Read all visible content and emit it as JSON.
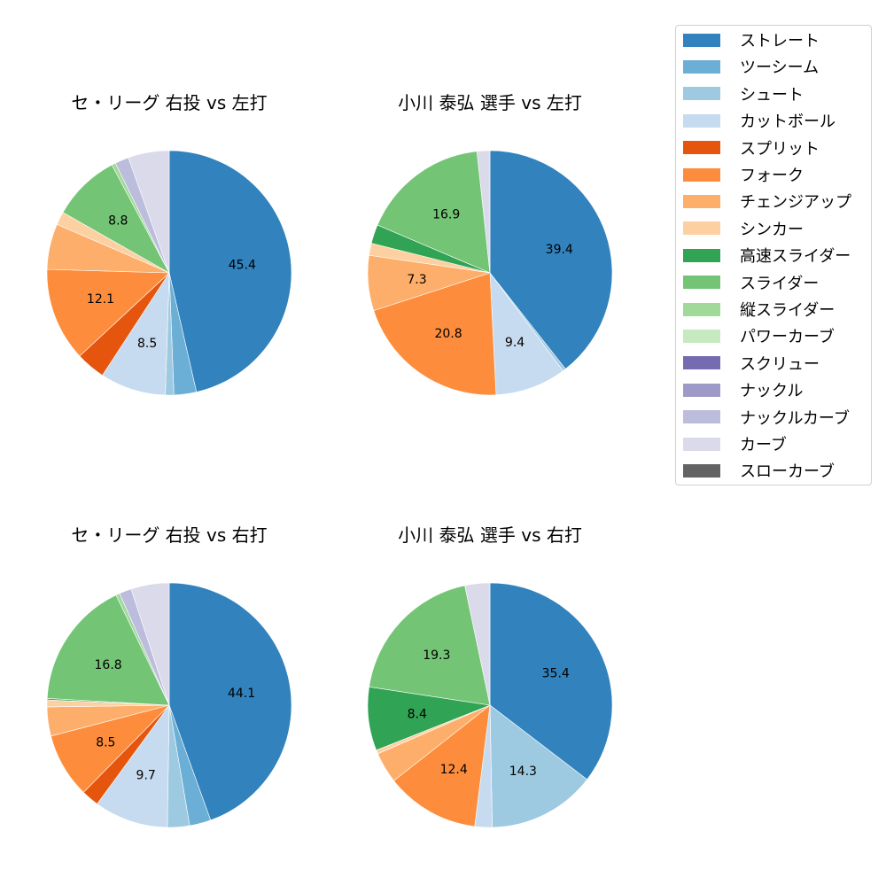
{
  "chart_data": [
    {
      "type": "pie",
      "title": "セ・リーグ 右投 vs 左打",
      "categories": [
        "ストレート",
        "ツーシーム",
        "シュート",
        "カットボール",
        "スプリット",
        "フォーク",
        "チェンジアップ",
        "シンカー",
        "高速スライダー",
        "スライダー",
        "縦スライダー",
        "パワーカーブ",
        "スクリュー",
        "ナックル",
        "ナックルカーブ",
        "カーブ",
        "スローカーブ"
      ],
      "values": [
        45.4,
        2.9,
        1.1,
        8.5,
        3.8,
        12.1,
        5.9,
        1.7,
        0.0,
        8.8,
        0.5,
        0.0,
        0.0,
        0.0,
        1.8,
        5.3,
        0.0
      ],
      "labels_shown": {
        "ストレート": "45.4",
        "カットボール": "8.5",
        "フォーク": "12.1",
        "スライダー": "8.8"
      }
    },
    {
      "type": "pie",
      "title": "小川 泰弘 選手 vs 左打",
      "categories": [
        "ストレート",
        "ツーシーム",
        "シュート",
        "カットボール",
        "スプリット",
        "フォーク",
        "チェンジアップ",
        "シンカー",
        "高速スライダー",
        "スライダー",
        "縦スライダー",
        "パワーカーブ",
        "スクリュー",
        "ナックル",
        "ナックルカーブ",
        "カーブ",
        "スローカーブ"
      ],
      "values": [
        39.4,
        0.0,
        0.4,
        9.4,
        0.0,
        20.8,
        7.3,
        1.6,
        2.5,
        16.9,
        0.0,
        0.0,
        0.0,
        0.0,
        0.0,
        1.7,
        0.0
      ],
      "labels_shown": {
        "ストレート": "39.4",
        "カットボール": "9.4",
        "フォーク": "20.8",
        "チェンジアップ": "7.3",
        "スライダー": "16.9"
      }
    },
    {
      "type": "pie",
      "title": "セ・リーグ 右投 vs 右打",
      "categories": [
        "ストレート",
        "ツーシーム",
        "シュート",
        "カットボール",
        "スプリット",
        "フォーク",
        "チェンジアップ",
        "シンカー",
        "高速スライダー",
        "スライダー",
        "縦スライダー",
        "パワーカーブ",
        "スクリュー",
        "ナックル",
        "ナックルカーブ",
        "カーブ",
        "スローカーブ"
      ],
      "values": [
        44.1,
        2.8,
        2.9,
        9.7,
        2.3,
        8.5,
        3.8,
        0.9,
        0.2,
        16.8,
        0.5,
        0.0,
        0.0,
        0.0,
        1.6,
        5.0,
        0.0
      ],
      "labels_shown": {
        "ストレート": "44.1",
        "カットボール": "9.7",
        "フォーク": "8.5",
        "スライダー": "16.8"
      }
    },
    {
      "type": "pie",
      "title": "小川 泰弘 選手 vs 右打",
      "categories": [
        "ストレート",
        "ツーシーム",
        "シュート",
        "カットボール",
        "スプリット",
        "フォーク",
        "チェンジアップ",
        "シンカー",
        "高速スライダー",
        "スライダー",
        "縦スライダー",
        "パワーカーブ",
        "スクリュー",
        "ナックル",
        "ナックルカーブ",
        "カーブ",
        "スローカーブ"
      ],
      "values": [
        35.4,
        0.0,
        14.3,
        2.3,
        0.0,
        12.4,
        4.1,
        0.5,
        8.4,
        19.3,
        0.0,
        0.0,
        0.0,
        0.0,
        0.0,
        3.3,
        0.0
      ],
      "labels_shown": {
        "ストレート": "35.4",
        "シュート": "14.3",
        "フォーク": "12.4",
        "高速スライダー": "8.4",
        "スライダー": "19.3"
      }
    }
  ],
  "legend": {
    "items": [
      {
        "label": "ストレート",
        "color": "#3182bd"
      },
      {
        "label": "ツーシーム",
        "color": "#6baed6"
      },
      {
        "label": "シュート",
        "color": "#9ecae1"
      },
      {
        "label": "カットボール",
        "color": "#c6dbef"
      },
      {
        "label": "スプリット",
        "color": "#e6550d"
      },
      {
        "label": "フォーク",
        "color": "#fd8d3c"
      },
      {
        "label": "チェンジアップ",
        "color": "#fdae6b"
      },
      {
        "label": "シンカー",
        "color": "#fdd0a2"
      },
      {
        "label": "高速スライダー",
        "color": "#31a354"
      },
      {
        "label": "スライダー",
        "color": "#74c476"
      },
      {
        "label": "縦スライダー",
        "color": "#a1d99b"
      },
      {
        "label": "パワーカーブ",
        "color": "#c7e9c0"
      },
      {
        "label": "スクリュー",
        "color": "#756bb1"
      },
      {
        "label": "ナックル",
        "color": "#9e9ac8"
      },
      {
        "label": "ナックルカーブ",
        "color": "#bcbddc"
      },
      {
        "label": "カーブ",
        "color": "#dadaeb"
      },
      {
        "label": "スローカーブ",
        "color": "#636363"
      }
    ]
  },
  "panels": [
    {
      "title": "セ・リーグ 右投 vs 左打"
    },
    {
      "title": "小川 泰弘 選手 vs 左打"
    },
    {
      "title": "セ・リーグ 右投 vs 右打"
    },
    {
      "title": "小川 泰弘 選手 vs 右打"
    }
  ]
}
